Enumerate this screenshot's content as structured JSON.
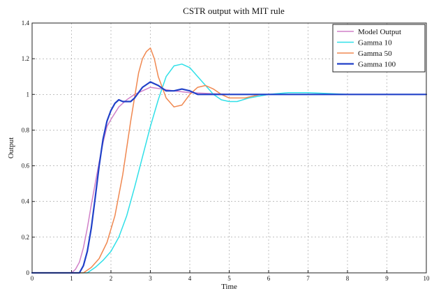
{
  "chart_data": {
    "type": "line",
    "title": "CSTR output with MIT rule",
    "xlabel": "Time",
    "ylabel": "Output",
    "xlim": [
      0,
      10
    ],
    "ylim": [
      0,
      1.4
    ],
    "xticks": [
      "0",
      "1",
      "2",
      "3",
      "4",
      "5",
      "6",
      "7",
      "8",
      "9",
      "10"
    ],
    "yticks": [
      "0",
      "0.2",
      "0.4",
      "0.6",
      "0.8",
      "1",
      "1.2",
      "1.4"
    ],
    "grid": true,
    "legend_position": "top-right",
    "series": [
      {
        "name": "Model Output",
        "color": "#d080c8",
        "width": 1.5,
        "x": [
          0,
          1.0,
          1.1,
          1.2,
          1.3,
          1.4,
          1.5,
          1.6,
          1.7,
          1.8,
          1.9,
          2.0,
          2.2,
          2.4,
          2.6,
          2.8,
          3.0,
          3.3,
          3.6,
          4.0,
          5.0,
          6.0,
          7.0,
          8.0,
          9.0,
          10.0
        ],
        "y": [
          0,
          0,
          0.02,
          0.06,
          0.14,
          0.25,
          0.38,
          0.5,
          0.62,
          0.73,
          0.82,
          0.86,
          0.93,
          0.97,
          1.0,
          1.02,
          1.04,
          1.03,
          1.02,
          1.01,
          1.0,
          1.0,
          1.0,
          1.0,
          1.0,
          1.0
        ]
      },
      {
        "name": "Gamma 10",
        "color": "#30e0e8",
        "width": 1.5,
        "x": [
          0,
          1.2,
          1.4,
          1.6,
          1.8,
          2.0,
          2.2,
          2.4,
          2.6,
          2.8,
          3.0,
          3.2,
          3.4,
          3.6,
          3.8,
          4.0,
          4.2,
          4.4,
          4.6,
          4.8,
          5.0,
          5.2,
          5.5,
          6.0,
          6.5,
          7.0,
          8.0,
          9.0,
          10.0
        ],
        "y": [
          0,
          0,
          0.0,
          0.03,
          0.07,
          0.12,
          0.2,
          0.32,
          0.48,
          0.65,
          0.82,
          0.97,
          1.1,
          1.16,
          1.17,
          1.15,
          1.1,
          1.05,
          1.0,
          0.97,
          0.96,
          0.96,
          0.98,
          1.0,
          1.01,
          1.01,
          1.0,
          1.0,
          1.0
        ]
      },
      {
        "name": "Gamma 50",
        "color": "#f08850",
        "width": 1.5,
        "x": [
          0,
          1.3,
          1.5,
          1.7,
          1.9,
          2.1,
          2.3,
          2.5,
          2.7,
          2.8,
          2.9,
          3.0,
          3.1,
          3.2,
          3.4,
          3.6,
          3.8,
          4.0,
          4.2,
          4.4,
          4.6,
          4.8,
          5.0,
          5.4,
          5.8,
          6.0,
          7.0,
          8.0,
          10.0
        ],
        "y": [
          0,
          0,
          0.03,
          0.08,
          0.17,
          0.32,
          0.55,
          0.85,
          1.12,
          1.2,
          1.24,
          1.26,
          1.2,
          1.1,
          0.98,
          0.93,
          0.94,
          1.0,
          1.04,
          1.05,
          1.03,
          1.0,
          0.98,
          0.98,
          1.0,
          1.0,
          1.0,
          1.0,
          1.0
        ]
      },
      {
        "name": "Gamma 100",
        "color": "#2040c8",
        "width": 2.2,
        "x": [
          0,
          1.2,
          1.3,
          1.4,
          1.5,
          1.6,
          1.7,
          1.8,
          1.9,
          2.0,
          2.1,
          2.2,
          2.3,
          2.5,
          2.6,
          2.8,
          3.0,
          3.2,
          3.4,
          3.6,
          3.8,
          4.0,
          4.2,
          4.5,
          5.0,
          6.0,
          7.0,
          8.0,
          10.0
        ],
        "y": [
          0,
          0,
          0.04,
          0.12,
          0.25,
          0.42,
          0.6,
          0.75,
          0.85,
          0.91,
          0.95,
          0.97,
          0.96,
          0.96,
          0.98,
          1.04,
          1.07,
          1.05,
          1.02,
          1.02,
          1.03,
          1.02,
          1.0,
          1.0,
          1.0,
          1.0,
          1.0,
          1.0,
          1.0
        ]
      }
    ]
  }
}
